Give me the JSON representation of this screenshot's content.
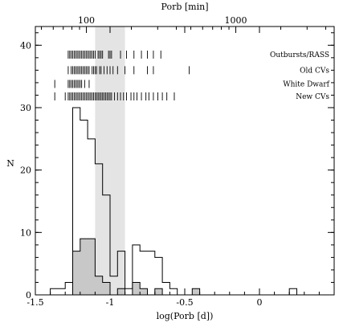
{
  "chart_data": {
    "type": "histogram",
    "title": "",
    "xlabel": "log(Porb [d])",
    "ylabel": "N",
    "top_axis_label": "Porb [min]",
    "xlim": [
      -1.5,
      0.5
    ],
    "ylim": [
      0,
      43
    ],
    "x_ticks": [
      -1.5,
      -1,
      -0.5,
      0
    ],
    "x_tick_labels": [
      "-1.5",
      "-1",
      "-0.5",
      "0"
    ],
    "y_ticks": [
      0,
      10,
      20,
      30,
      40
    ],
    "y_tick_labels": [
      "0",
      "10",
      "20",
      "30",
      "40"
    ],
    "top_ticks_minutes": [
      100,
      1000
    ],
    "top_tick_labels": [
      "100",
      "1000"
    ],
    "period_gap": [
      -1.1,
      -0.9
    ],
    "bin_edges": [
      -1.4,
      -1.3,
      -1.25,
      -1.2,
      -1.15,
      -1.1,
      -1.05,
      -1.0,
      -0.95,
      -0.9,
      -0.85,
      -0.8,
      -0.75,
      -0.7,
      -0.65,
      -0.6,
      -0.55,
      -0.5,
      -0.45,
      -0.4,
      -0.35,
      -0.3,
      -0.25,
      -0.2,
      -0.15,
      -0.1,
      -0.05,
      0.0,
      0.05,
      0.1,
      0.15,
      0.2,
      0.25,
      0.3
    ],
    "series": [
      {
        "style": "open",
        "values": [
          1,
          2,
          30,
          28,
          25,
          21,
          16,
          3,
          7,
          1,
          8,
          7,
          7,
          6,
          2,
          1,
          0,
          0,
          0,
          0,
          0,
          0,
          0,
          0,
          0,
          0,
          0,
          0,
          0,
          0,
          0,
          1,
          0
        ]
      },
      {
        "style": "filled",
        "values": [
          0,
          0,
          7,
          9,
          9,
          3,
          2,
          0,
          1,
          0,
          2,
          1,
          0,
          1,
          0,
          0,
          0,
          0,
          1,
          0,
          0,
          0,
          0,
          0,
          0,
          0,
          0,
          0,
          0,
          0,
          0,
          0,
          0
        ]
      }
    ],
    "rug_rows": [
      {
        "label": "Outbursts/RASS",
        "y": 38.5,
        "ticks": [
          -1.28,
          -1.27,
          -1.26,
          -1.25,
          -1.24,
          -1.23,
          -1.22,
          -1.21,
          -1.2,
          -1.19,
          -1.18,
          -1.17,
          -1.16,
          -1.15,
          -1.14,
          -1.13,
          -1.12,
          -1.11,
          -1.1,
          -1.08,
          -1.07,
          -1.06,
          -1.05,
          -1.01,
          -1.0,
          -0.99,
          -0.93,
          -0.89,
          -0.84,
          -0.79,
          -0.75,
          -0.71,
          -0.66
        ]
      },
      {
        "label": "Old CVs",
        "y": 36.0,
        "ticks": [
          -1.28,
          -1.26,
          -1.25,
          -1.24,
          -1.23,
          -1.22,
          -1.21,
          -1.2,
          -1.19,
          -1.18,
          -1.17,
          -1.16,
          -1.15,
          -1.14,
          -1.12,
          -1.11,
          -1.1,
          -1.09,
          -1.07,
          -1.06,
          -1.04,
          -1.02,
          -1.0,
          -0.98,
          -0.95,
          -0.9,
          -0.84,
          -0.75,
          -0.71,
          -0.47
        ]
      },
      {
        "label": "White Dwarf",
        "y": 33.8,
        "ticks": [
          -1.37,
          -1.28,
          -1.27,
          -1.26,
          -1.25,
          -1.24,
          -1.23,
          -1.22,
          -1.21,
          -1.2,
          -1.19,
          -1.17,
          -1.14
        ]
      },
      {
        "label": "New CVs",
        "y": 31.8,
        "ticks": [
          -1.37,
          -1.3,
          -1.28,
          -1.27,
          -1.26,
          -1.25,
          -1.24,
          -1.23,
          -1.22,
          -1.21,
          -1.2,
          -1.19,
          -1.18,
          -1.17,
          -1.16,
          -1.15,
          -1.14,
          -1.13,
          -1.12,
          -1.11,
          -1.1,
          -1.09,
          -1.08,
          -1.07,
          -1.06,
          -1.05,
          -1.04,
          -1.03,
          -1.02,
          -1.01,
          -1.0,
          -0.99,
          -0.97,
          -0.95,
          -0.93,
          -0.91,
          -0.89,
          -0.86,
          -0.84,
          -0.82,
          -0.79,
          -0.76,
          -0.74,
          -0.71,
          -0.68,
          -0.65,
          -0.62,
          -0.57
        ]
      }
    ]
  }
}
